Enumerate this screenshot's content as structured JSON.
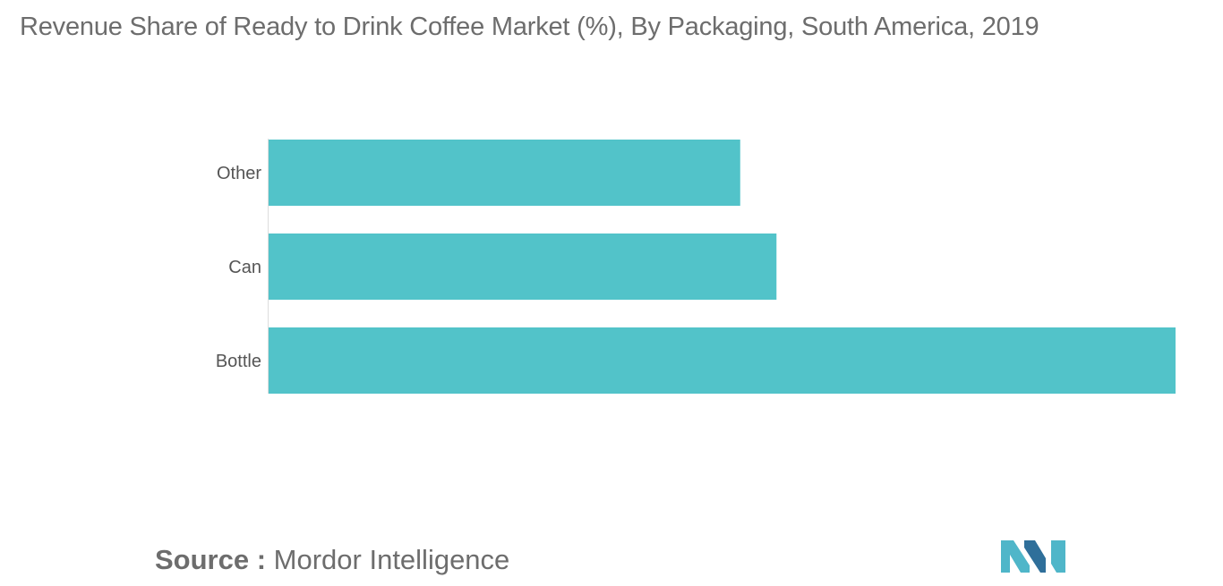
{
  "chart_data": {
    "type": "bar",
    "orientation": "horizontal",
    "title": "Revenue Share of Ready to Drink Coffee Market (%), By Packaging, South America, 2019",
    "categories": [
      "Other",
      "Can",
      "Bottle"
    ],
    "values": [
      52,
      56,
      100
    ],
    "xlim": [
      0,
      100
    ],
    "grid": false,
    "legend": "none",
    "bar_color": "#52c3c9"
  },
  "source": {
    "label": "Source :",
    "value": "Mordor Intelligence"
  },
  "logo": {
    "icon": "mordor-intelligence-logo-icon",
    "colors": [
      "#4fb6c9",
      "#2f6f9a"
    ]
  }
}
